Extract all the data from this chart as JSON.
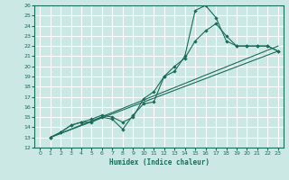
{
  "xlabel": "Humidex (Indice chaleur)",
  "bg_color": "#cce8e4",
  "grid_color": "#ffffff",
  "line_color": "#1a6b5a",
  "xlim": [
    -0.5,
    23.5
  ],
  "ylim": [
    12,
    26
  ],
  "xticks": [
    0,
    1,
    2,
    3,
    4,
    5,
    6,
    7,
    8,
    9,
    10,
    11,
    12,
    13,
    14,
    15,
    16,
    17,
    18,
    19,
    20,
    21,
    22,
    23
  ],
  "yticks": [
    12,
    13,
    14,
    15,
    16,
    17,
    18,
    19,
    20,
    21,
    22,
    23,
    24,
    25,
    26
  ],
  "lines": [
    {
      "x": [
        1,
        2,
        3,
        4,
        5,
        6,
        7,
        8,
        9,
        10,
        11,
        12,
        13,
        14,
        15,
        16,
        17,
        18,
        19,
        20,
        21,
        22,
        23
      ],
      "y": [
        13,
        13.5,
        14.2,
        14.5,
        14.5,
        15,
        14.8,
        13.8,
        15.2,
        16.3,
        16.5,
        19,
        19.5,
        21,
        25.5,
        26,
        24.8,
        22.5,
        22,
        22,
        22,
        22,
        21.5
      ],
      "marker": true
    },
    {
      "x": [
        1,
        2,
        3,
        4,
        5,
        6,
        7,
        8,
        9,
        10,
        11,
        12,
        13,
        14,
        15,
        16,
        17,
        18,
        19,
        20,
        21,
        22,
        23
      ],
      "y": [
        13,
        13.5,
        14.2,
        14.5,
        14.8,
        15.2,
        15,
        14.5,
        15,
        16.8,
        17.5,
        19,
        20,
        20.8,
        22.5,
        23.5,
        24.2,
        23,
        22,
        22,
        22,
        22,
        21.5
      ],
      "marker": true
    },
    {
      "x": [
        1,
        23
      ],
      "y": [
        13,
        21.5
      ],
      "marker": false
    },
    {
      "x": [
        1,
        23
      ],
      "y": [
        13,
        22.0
      ],
      "marker": false
    }
  ]
}
